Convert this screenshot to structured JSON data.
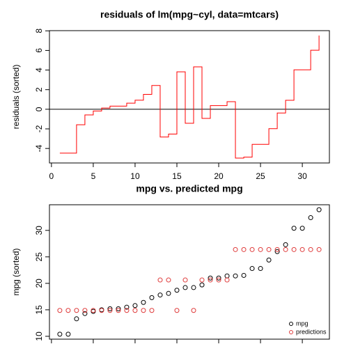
{
  "chart_data": [
    {
      "type": "step",
      "title": "residuals of lm(mpg~cyl, data=mtcars)",
      "y_label": "residuals (sorted)",
      "x": [
        1,
        2,
        3,
        4,
        5,
        6,
        7,
        8,
        9,
        10,
        11,
        12,
        13,
        14,
        15,
        16,
        17,
        18,
        19,
        20,
        21,
        22,
        23,
        24,
        25,
        26,
        27,
        28,
        29,
        30,
        31,
        32
      ],
      "series": [
        {
          "color": "#ff0000",
          "values": [
            -4.478,
            -4.478,
            -1.578,
            -0.578,
            -0.178,
            0.122,
            0.322,
            0.322,
            0.622,
            0.922,
            1.522,
            2.422,
            -2.83,
            -2.53,
            3.822,
            -1.43,
            4.322,
            -0.93,
            0.37,
            0.37,
            0.77,
            -4.981,
            -4.881,
            -3.581,
            -3.581,
            -1.981,
            -0.381,
            0.919,
            4.019,
            4.019,
            6.019,
            7.519
          ]
        }
      ],
      "hline": 0,
      "xlim": [
        -0.24,
        33.24
      ],
      "ylim": [
        -5.48,
        8.02
      ],
      "xticks": [
        0,
        5,
        10,
        15,
        20,
        25,
        30
      ],
      "yticks": [
        -4,
        -2,
        0,
        2,
        4,
        6,
        8
      ]
    },
    {
      "type": "scatter",
      "title": "mpg vs. predicted mpg",
      "y_label": "mpg (sorted)",
      "x": [
        1,
        2,
        3,
        4,
        5,
        6,
        7,
        8,
        9,
        10,
        11,
        12,
        13,
        14,
        15,
        16,
        17,
        18,
        19,
        20,
        21,
        22,
        23,
        24,
        25,
        26,
        27,
        28,
        29,
        30,
        31,
        32
      ],
      "series": [
        {
          "name": "mpg",
          "color": "#000000",
          "values": [
            10.4,
            10.4,
            13.3,
            14.3,
            14.7,
            15.0,
            15.2,
            15.2,
            15.5,
            15.8,
            16.4,
            17.3,
            17.8,
            18.1,
            18.7,
            19.2,
            19.2,
            19.7,
            21.0,
            21.0,
            21.4,
            21.4,
            21.5,
            22.8,
            22.8,
            24.4,
            26.0,
            27.3,
            30.4,
            30.4,
            32.4,
            33.9
          ]
        },
        {
          "name": "predictions",
          "color": "#df3a3a",
          "values": [
            14.88,
            14.88,
            14.88,
            14.88,
            14.88,
            14.88,
            14.88,
            14.88,
            14.88,
            14.88,
            14.88,
            14.88,
            20.63,
            20.63,
            14.88,
            20.63,
            14.88,
            20.63,
            20.63,
            20.63,
            20.63,
            26.38,
            26.38,
            26.38,
            26.38,
            26.38,
            26.38,
            26.38,
            26.38,
            26.38,
            26.38,
            26.38
          ]
        }
      ],
      "legend": "bottom-right",
      "xlim": [
        -0.24,
        33.24
      ],
      "ylim": [
        9.46,
        34.84
      ],
      "xticks": [
        0,
        5,
        10,
        15,
        20,
        25,
        30
      ],
      "yticks": [
        10,
        15,
        20,
        25,
        30
      ]
    }
  ]
}
